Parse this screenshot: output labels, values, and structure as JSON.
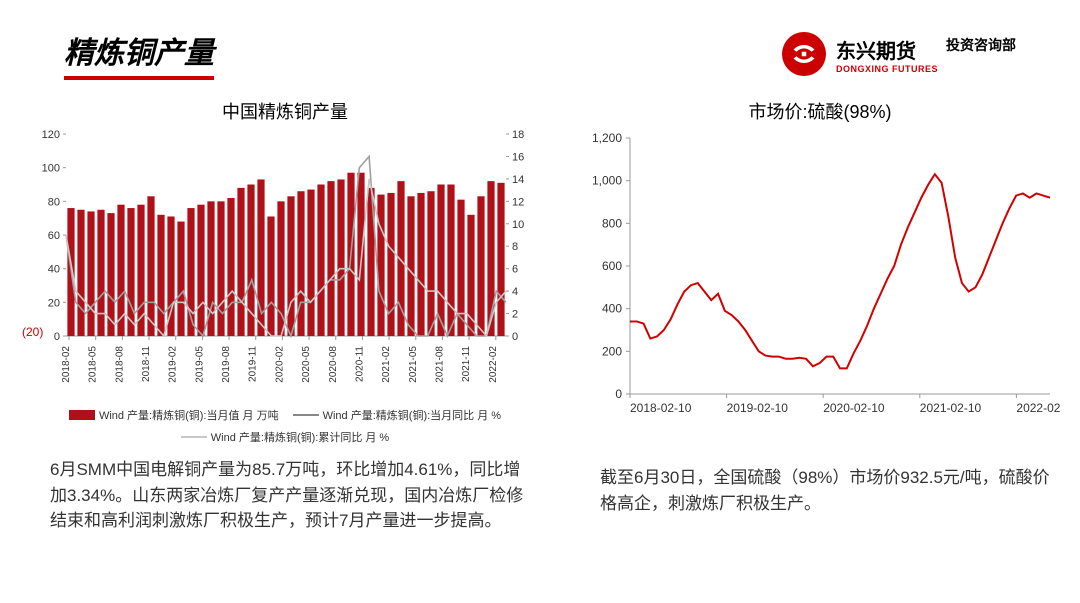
{
  "page": {
    "title": "精炼铜产量"
  },
  "brand": {
    "cn": "东兴期货",
    "en": "DONGXING FUTURES",
    "dept": "投资咨询部",
    "color": "#c00000"
  },
  "left_chart": {
    "type": "bar+line-dual-axis",
    "title": "中国精炼铜产量",
    "bar_color": "#b01018",
    "line1_color": "#a0a0a0",
    "line2_color": "#c8c8c8",
    "grid_color": "#d9d9d9",
    "background": "#ffffff",
    "y_left": {
      "min": -20,
      "max": 120,
      "step": 20,
      "neg_label": "(20)",
      "neg_color": "#c00000"
    },
    "y_right": {
      "min": 0,
      "max": 18,
      "step": 2
    },
    "x_labels": [
      "2018-02",
      "2018-05",
      "2018-08",
      "2018-11",
      "2019-02",
      "2019-05",
      "2019-08",
      "2019-11",
      "2020-02",
      "2020-05",
      "2020-08",
      "2020-11",
      "2021-02",
      "2021-05",
      "2021-08",
      "2021-11",
      "2022-02"
    ],
    "bars": [
      76,
      75,
      74,
      75,
      73,
      78,
      76,
      78,
      83,
      72,
      71,
      68,
      76,
      78,
      80,
      80,
      82,
      88,
      90,
      93,
      71,
      80,
      83,
      86,
      87,
      90,
      92,
      93,
      97,
      97,
      88,
      84,
      85,
      92,
      83,
      85,
      86,
      90,
      90,
      81,
      72,
      83,
      92,
      91
    ],
    "line1_pct": [
      9,
      3,
      2,
      3,
      4,
      3,
      4,
      2,
      3,
      3,
      2,
      3,
      4,
      1,
      -2,
      3,
      2,
      3,
      3,
      5,
      2,
      3,
      2,
      -15,
      3,
      3,
      4,
      5,
      5,
      6,
      15,
      16,
      4,
      2,
      3,
      1,
      0,
      -1,
      2,
      0,
      2,
      1,
      0,
      -5,
      4,
      3
    ],
    "line2_pct": [
      9,
      4,
      3,
      2,
      2,
      1,
      2,
      1,
      2,
      1,
      0,
      3,
      3,
      2,
      3,
      2,
      3,
      4,
      3,
      2,
      1,
      -2,
      -3,
      3,
      4,
      3,
      4,
      5,
      6,
      6,
      5,
      14,
      10,
      8,
      7,
      6,
      5,
      4,
      4,
      3,
      2,
      2,
      1,
      -2,
      3,
      4
    ],
    "legend": [
      "Wind 产量:精炼铜(铜):当月值 月 万吨",
      "Wind 产量:精炼铜(铜):当月同比 月 %",
      "Wind 产量:精炼铜(铜):累计同比 月 %"
    ],
    "title_fontsize": 18,
    "tick_fontsize": 11
  },
  "right_chart": {
    "type": "line",
    "title": "市场价:硫酸(98%)",
    "line_color": "#d30000",
    "background": "#ffffff",
    "y": {
      "min": 0,
      "max": 1200,
      "step": 200
    },
    "x_labels": [
      "2018-02-10",
      "2019-02-10",
      "2020-02-10",
      "2021-02-10",
      "2022-02-10"
    ],
    "values": [
      340,
      340,
      330,
      260,
      270,
      300,
      350,
      420,
      480,
      510,
      520,
      480,
      440,
      470,
      390,
      370,
      340,
      300,
      250,
      200,
      180,
      175,
      175,
      165,
      165,
      170,
      165,
      130,
      145,
      175,
      175,
      120,
      120,
      190,
      250,
      320,
      400,
      470,
      540,
      600,
      700,
      780,
      850,
      920,
      980,
      1030,
      990,
      830,
      640,
      520,
      480,
      500,
      560,
      640,
      720,
      800,
      870,
      930,
      940,
      920,
      940,
      930,
      920
    ],
    "title_fontsize": 18,
    "tick_fontsize": 12,
    "line_width": 2
  },
  "desc_left": "6月SMM中国电解铜产量为85.7万吨，环比增加4.61%，同比增加3.34%。山东两家冶炼厂复产产量逐渐兑现，国内冶炼厂检修结束和高利润刺激炼厂积极生产，预计7月产量进一步提高。",
  "desc_right": "截至6月30日，全国硫酸（98%）市场价932.5元/吨，硫酸价格高企，刺激炼厂积极生产。"
}
